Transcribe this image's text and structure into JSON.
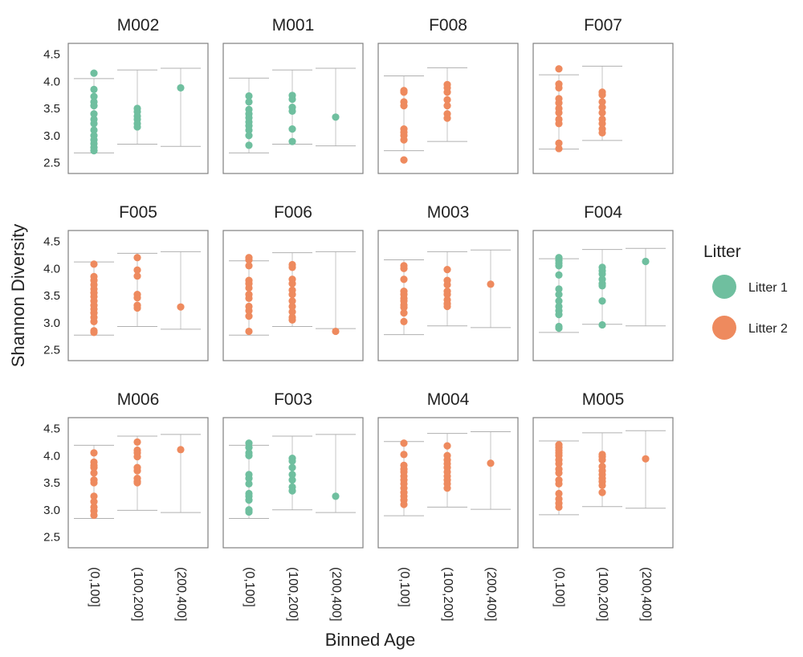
{
  "chart_data": {
    "type": "scatter",
    "title": "",
    "xlabel": "Binned Age",
    "ylabel": "Shannon Diversity",
    "ylim": [
      2.3,
      4.7
    ],
    "yticks": [
      2.5,
      3.0,
      3.5,
      4.0,
      4.5
    ],
    "ytick_labels": [
      "2.5",
      "3.0",
      "3.5",
      "4.0",
      "4.5"
    ],
    "categories": [
      "(0,100]",
      "(100,200]",
      "(200,400]"
    ],
    "legend": {
      "title": "Litter",
      "position": "right",
      "items": [
        {
          "label": "Litter 1",
          "color": "#6fbf9f"
        },
        {
          "label": "Litter 2",
          "color": "#ee8a5e"
        }
      ]
    },
    "panels": [
      {
        "title": "M002",
        "litter": "Litter 1",
        "whiskers": [
          [
            2.68,
            4.05
          ],
          [
            2.84,
            4.21
          ],
          [
            2.8,
            4.24
          ]
        ],
        "points": [
          [
            4.15,
            3.85,
            3.72,
            3.62,
            3.55,
            3.4,
            3.3,
            3.22,
            3.1,
            3.0,
            2.92,
            2.85,
            2.78,
            2.72
          ],
          [
            3.5,
            3.44,
            3.36,
            3.3,
            3.22,
            3.16
          ],
          [
            3.88
          ]
        ]
      },
      {
        "title": "M001",
        "litter": "Litter 1",
        "whiskers": [
          [
            2.68,
            4.06
          ],
          [
            2.84,
            4.21
          ],
          [
            2.81,
            4.24
          ]
        ],
        "points": [
          [
            3.73,
            3.62,
            3.48,
            3.4,
            3.33,
            3.25,
            3.18,
            3.1,
            3.0,
            2.82
          ],
          [
            3.74,
            3.67,
            3.52,
            3.45,
            3.12,
            2.89
          ],
          [
            3.34
          ]
        ]
      },
      {
        "title": "F008",
        "litter": "Litter 2",
        "whiskers": [
          [
            2.72,
            4.1
          ],
          [
            2.89,
            4.25
          ],
          null
        ],
        "points": [
          [
            3.83,
            3.8,
            3.62,
            3.55,
            3.12,
            3.06,
            3.0,
            2.92,
            2.55
          ],
          [
            3.94,
            3.88,
            3.8,
            3.66,
            3.55,
            3.4,
            3.32
          ],
          []
        ]
      },
      {
        "title": "F007",
        "litter": "Litter 2",
        "whiskers": [
          [
            2.75,
            4.12
          ],
          [
            2.91,
            4.28
          ],
          null
        ],
        "points": [
          [
            4.23,
            3.95,
            3.88,
            3.68,
            3.6,
            3.5,
            3.42,
            3.3,
            3.22,
            2.86,
            2.76
          ],
          [
            3.8,
            3.75,
            3.62,
            3.52,
            3.42,
            3.3,
            3.22,
            3.12,
            3.05
          ],
          []
        ]
      },
      {
        "title": "F005",
        "litter": "Litter 2",
        "whiskers": [
          [
            2.77,
            4.12
          ],
          [
            2.93,
            4.28
          ],
          [
            2.88,
            4.31
          ]
        ],
        "points": [
          [
            4.08,
            3.85,
            3.78,
            3.7,
            3.62,
            3.55,
            3.48,
            3.4,
            3.32,
            3.25,
            3.18,
            3.1,
            3.02,
            2.85,
            2.82
          ],
          [
            4.2,
            3.97,
            3.86,
            3.52,
            3.46,
            3.32,
            3.27
          ],
          [
            3.29
          ]
        ]
      },
      {
        "title": "F006",
        "litter": "Litter 2",
        "whiskers": [
          [
            2.77,
            4.14
          ],
          [
            2.93,
            4.29
          ],
          [
            2.89,
            4.31
          ]
        ],
        "points": [
          [
            4.2,
            4.16,
            4.05,
            3.78,
            3.72,
            3.64,
            3.52,
            3.45,
            3.3,
            3.22,
            3.12,
            2.84
          ],
          [
            4.07,
            4.02,
            3.8,
            3.72,
            3.6,
            3.52,
            3.4,
            3.3,
            3.2,
            3.1,
            3.05
          ],
          [
            2.84
          ]
        ]
      },
      {
        "title": "M003",
        "litter": "Litter 2",
        "whiskers": [
          [
            2.78,
            4.16
          ],
          [
            2.94,
            4.31
          ],
          [
            2.91,
            4.34
          ]
        ],
        "points": [
          [
            4.05,
            4.0,
            3.8,
            3.58,
            3.52,
            3.45,
            3.4,
            3.33,
            3.28,
            3.18,
            3.02
          ],
          [
            3.98,
            3.78,
            3.7,
            3.58,
            3.52,
            3.42,
            3.35,
            3.3
          ],
          [
            3.71
          ]
        ]
      },
      {
        "title": "F004",
        "litter": "Litter 1",
        "whiskers": [
          [
            2.82,
            4.18
          ],
          [
            2.97,
            4.35
          ],
          [
            2.94,
            4.37
          ]
        ],
        "points": [
          [
            4.2,
            4.15,
            4.1,
            4.05,
            3.88,
            3.62,
            3.52,
            3.4,
            3.3,
            3.22,
            3.15,
            2.93,
            2.9
          ],
          [
            4.02,
            3.96,
            3.9,
            3.8,
            3.72,
            3.68,
            3.4,
            2.96
          ],
          [
            4.13
          ]
        ]
      },
      {
        "title": "M006",
        "litter": "Litter 2",
        "whiskers": [
          [
            2.84,
            4.19
          ],
          [
            2.99,
            4.36
          ],
          [
            2.95,
            4.39
          ]
        ],
        "points": [
          [
            4.05,
            3.88,
            3.82,
            3.78,
            3.68,
            3.55,
            3.5,
            3.25,
            3.15,
            3.05,
            2.98,
            2.9
          ],
          [
            4.25,
            4.1,
            4.05,
            3.98,
            3.78,
            3.72,
            3.58,
            3.52,
            3.5
          ],
          [
            4.11
          ]
        ]
      },
      {
        "title": "F003",
        "litter": "Litter 1",
        "whiskers": [
          [
            2.84,
            4.19
          ],
          [
            3.0,
            4.36
          ],
          [
            2.95,
            4.39
          ]
        ],
        "points": [
          [
            4.23,
            4.15,
            4.05,
            4.0,
            3.65,
            3.58,
            3.48,
            3.3,
            3.25,
            3.18,
            3.0,
            2.96
          ],
          [
            3.95,
            3.9,
            3.78,
            3.65,
            3.55,
            3.42,
            3.35
          ],
          [
            3.25
          ]
        ]
      },
      {
        "title": "M004",
        "litter": "Litter 2",
        "whiskers": [
          [
            2.89,
            4.26
          ],
          [
            3.05,
            4.41
          ],
          [
            3.01,
            4.44
          ]
        ],
        "points": [
          [
            4.23,
            4.02,
            3.82,
            3.75,
            3.7,
            3.62,
            3.55,
            3.48,
            3.4,
            3.32,
            3.25,
            3.18,
            3.1
          ],
          [
            4.18,
            4.0,
            3.92,
            3.85,
            3.78,
            3.7,
            3.62,
            3.55,
            3.48,
            3.4
          ],
          [
            3.86
          ]
        ]
      },
      {
        "title": "M005",
        "litter": "Litter 2",
        "whiskers": [
          [
            2.91,
            4.27
          ],
          [
            3.06,
            4.42
          ],
          [
            3.03,
            4.46
          ]
        ],
        "points": [
          [
            4.2,
            4.15,
            4.1,
            4.05,
            4.0,
            3.92,
            3.85,
            3.75,
            3.68,
            3.55,
            3.48,
            3.3,
            3.2,
            3.12,
            3.05
          ],
          [
            4.02,
            3.98,
            3.92,
            3.8,
            3.72,
            3.65,
            3.58,
            3.52,
            3.45,
            3.32
          ],
          [
            3.94
          ]
        ]
      }
    ]
  }
}
